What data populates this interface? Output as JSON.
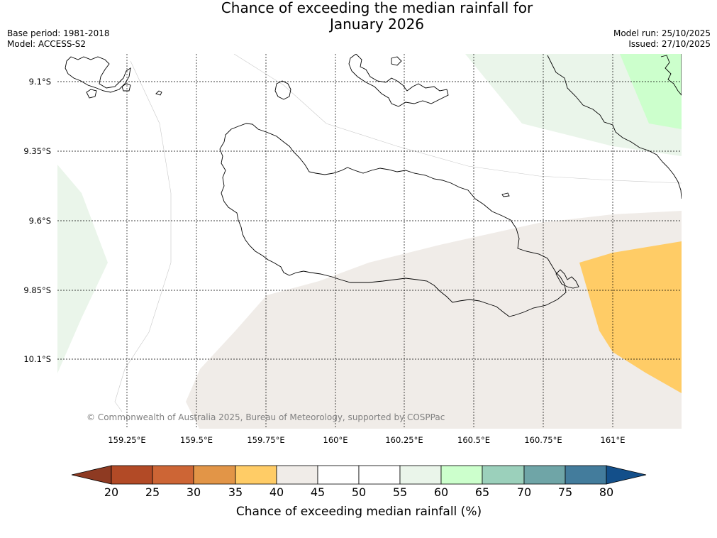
{
  "title": {
    "line1": "Chance of exceeding the median rainfall for",
    "line2": "January 2026"
  },
  "meta": {
    "base_period": "Base period: 1981-2018",
    "model": "Model: ACCESS-S2",
    "model_run": "Model run: 25/10/2025",
    "issued": "Issued: 27/10/2025"
  },
  "map": {
    "lat_labels": [
      "9.1°S",
      "9.35°S",
      "9.6°S",
      "9.85°S",
      "10.1°S"
    ],
    "lon_labels": [
      "159.25°E",
      "159.5°E",
      "159.75°E",
      "160°E",
      "160.25°E",
      "160.5°E",
      "160.75°E",
      "161°E"
    ],
    "copyright": "© Commonwealth of Australia 2025, Bureau of Meteorology, supported by COSPPac",
    "colors": {
      "c40_45": "#f0ece8",
      "c55_60": "#eaf5ea",
      "c60_65": "#ccffcc",
      "c35_40": "#ffcc66"
    }
  },
  "colorbar": {
    "label": "Chance of exceeding median rainfall (%)",
    "ticks": [
      "20",
      "25",
      "30",
      "35",
      "40",
      "45",
      "50",
      "55",
      "60",
      "65",
      "70",
      "75",
      "80"
    ],
    "segment_colors": [
      "#b24a26",
      "#cd6535",
      "#e29547",
      "#ffcc66",
      "#f0ece8",
      "#ffffff",
      "#ffffff",
      "#eaf5ea",
      "#ccffcc",
      "#9bd0bb",
      "#6fa5a7",
      "#437c9c"
    ],
    "under_color": "#8e3a22",
    "over_color": "#134f8a"
  }
}
